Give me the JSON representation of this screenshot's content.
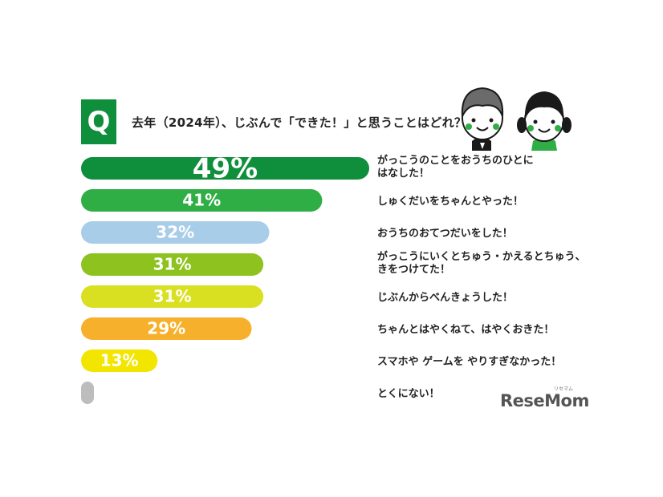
{
  "header": {
    "badge": "Q",
    "question": "去年（2024年）、じぶんで「できた！」と思うことはどれ？"
  },
  "logo": {
    "text": "ReseMom",
    "kana": "リセマム"
  },
  "colors": {
    "badge": "#0f8f3c",
    "bars": [
      "#0f8f3c",
      "#2fae46",
      "#a8cde8",
      "#8dc21f",
      "#d9e021",
      "#f7b02c",
      "#f2e500",
      "#bdbdbd"
    ]
  },
  "chart_data": {
    "type": "bar",
    "orientation": "horizontal",
    "title": "去年（2024年）、じぶんで「できた！」と思うことはどれ？",
    "categories": [
      [
        "がっこうのことをおうちのひとに",
        "はなした！"
      ],
      [
        "しゅくだいをちゃんとやった！"
      ],
      [
        "おうちのおてつだいをした！"
      ],
      [
        "がっこうにいくとちゅう・かえるとちゅう、",
        "きをつけてた！"
      ],
      [
        "じぶんからべんきょうした！"
      ],
      [
        "ちゃんとはやくねて、はやくおきた！"
      ],
      [
        "スマホや ゲームを やりすぎなかった！"
      ],
      [
        "とくにない！"
      ]
    ],
    "values": [
      49,
      41,
      32,
      31,
      31,
      29,
      13,
      3
    ],
    "labels": [
      "49%",
      "41%",
      "32%",
      "31%",
      "31%",
      "29%",
      "13%",
      "3%"
    ],
    "xlim": [
      0,
      49
    ],
    "grid": false
  }
}
